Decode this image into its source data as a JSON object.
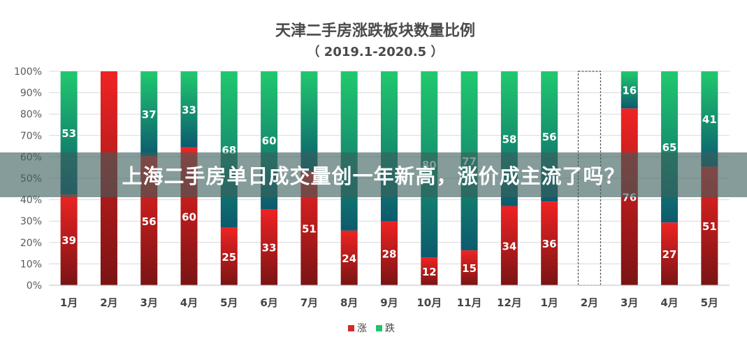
{
  "chart_data": {
    "type": "bar",
    "stacked": "percent",
    "title": "天津二手房涨跌板块数量比例",
    "subtitle": "（ 2019.1-2020.5 ）",
    "categories": [
      "1月",
      "2月",
      "3月",
      "4月",
      "5月",
      "6月",
      "7月",
      "8月",
      "9月",
      "10月",
      "11月",
      "12月",
      "1月",
      "2月",
      "3月",
      "4月",
      "5月"
    ],
    "series": [
      {
        "name": "涨",
        "color": "#d42a2a",
        "values": [
          39,
          100,
          56,
          60,
          25,
          33,
          51,
          24,
          28,
          12,
          15,
          34,
          36,
          null,
          76,
          27,
          51
        ]
      },
      {
        "name": "跌",
        "color": "#1ec36e",
        "values": [
          53,
          0,
          37,
          33,
          68,
          60,
          45,
          70,
          66,
          80,
          77,
          58,
          56,
          null,
          16,
          65,
          41
        ]
      }
    ],
    "labels": {
      "rise": [
        "39",
        "",
        "56",
        "60",
        "25",
        "33",
        "51",
        "24",
        "28",
        "12",
        "15",
        "34",
        "36",
        "",
        "76",
        "27",
        "51"
      ],
      "fall": [
        "53",
        "",
        "37",
        "33",
        "68",
        "60",
        "",
        "",
        "",
        "80",
        "77",
        "58",
        "56",
        "",
        "16",
        "65",
        "41"
      ]
    },
    "yticks": [
      "0%",
      "10%",
      "20%",
      "30%",
      "40%",
      "50%",
      "60%",
      "70%",
      "80%",
      "90%",
      "100%"
    ],
    "ylim": [
      0,
      100
    ],
    "grid": true,
    "legend_position": "bottom",
    "highlighted_category_index": 13
  },
  "banner": {
    "text": "上海二手房单日成交量创一年新高，涨价成主流了吗？"
  }
}
